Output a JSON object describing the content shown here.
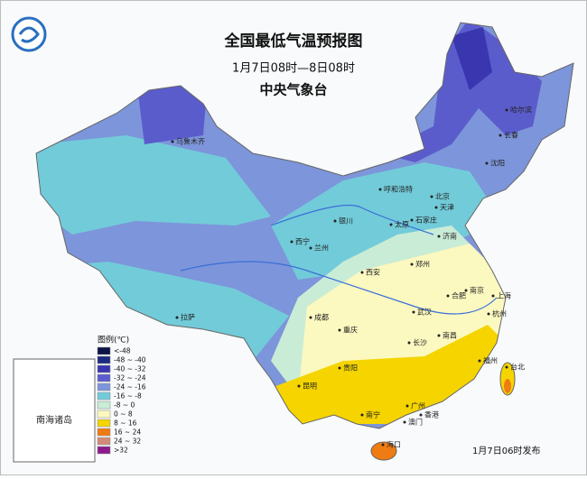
{
  "header": {
    "title": "全国最低气温预报图",
    "period": "1月7日08时—8日08时",
    "agency": "中央气象台"
  },
  "legend": {
    "title": "图例(℃)",
    "items": [
      {
        "label": "<-48",
        "color": "#0b1446"
      },
      {
        "label": "-48 ~ -40",
        "color": "#1d2a82"
      },
      {
        "label": "-40 ~ -32",
        "color": "#3a36b0"
      },
      {
        "label": "-32 ~ -24",
        "color": "#5b5ccc"
      },
      {
        "label": "-24 ~ -16",
        "color": "#7d95da"
      },
      {
        "label": "-16 ~ -8",
        "color": "#72cbd9"
      },
      {
        "label": "-8 ~ 0",
        "color": "#c9ecd6"
      },
      {
        "label": "0 ~ 8",
        "color": "#fbf9c0"
      },
      {
        "label": "8 ~ 16",
        "color": "#f5d400"
      },
      {
        "label": "16 ~ 24",
        "color": "#ef7c12"
      },
      {
        "label": "24 ~ 32",
        "color": "#d48a78"
      },
      {
        "label": ">32",
        "color": "#8c1a8c"
      }
    ]
  },
  "cities": [
    "乌鲁木齐",
    "哈尔滨",
    "长春",
    "沈阳",
    "呼和浩特",
    "北京",
    "天津",
    "石家庄",
    "太原",
    "银川",
    "西宁",
    "兰州",
    "济南",
    "郑州",
    "西安",
    "合肥",
    "南京",
    "上海",
    "武汉",
    "杭州",
    "成都",
    "重庆",
    "长沙",
    "南昌",
    "拉萨",
    "贵阳",
    "福州",
    "台北",
    "昆明",
    "南宁",
    "广州",
    "香港",
    "澳门",
    "海口"
  ],
  "inset": {
    "label": "南海诸岛"
  },
  "footer": {
    "issued": "1月7日06时发布"
  }
}
